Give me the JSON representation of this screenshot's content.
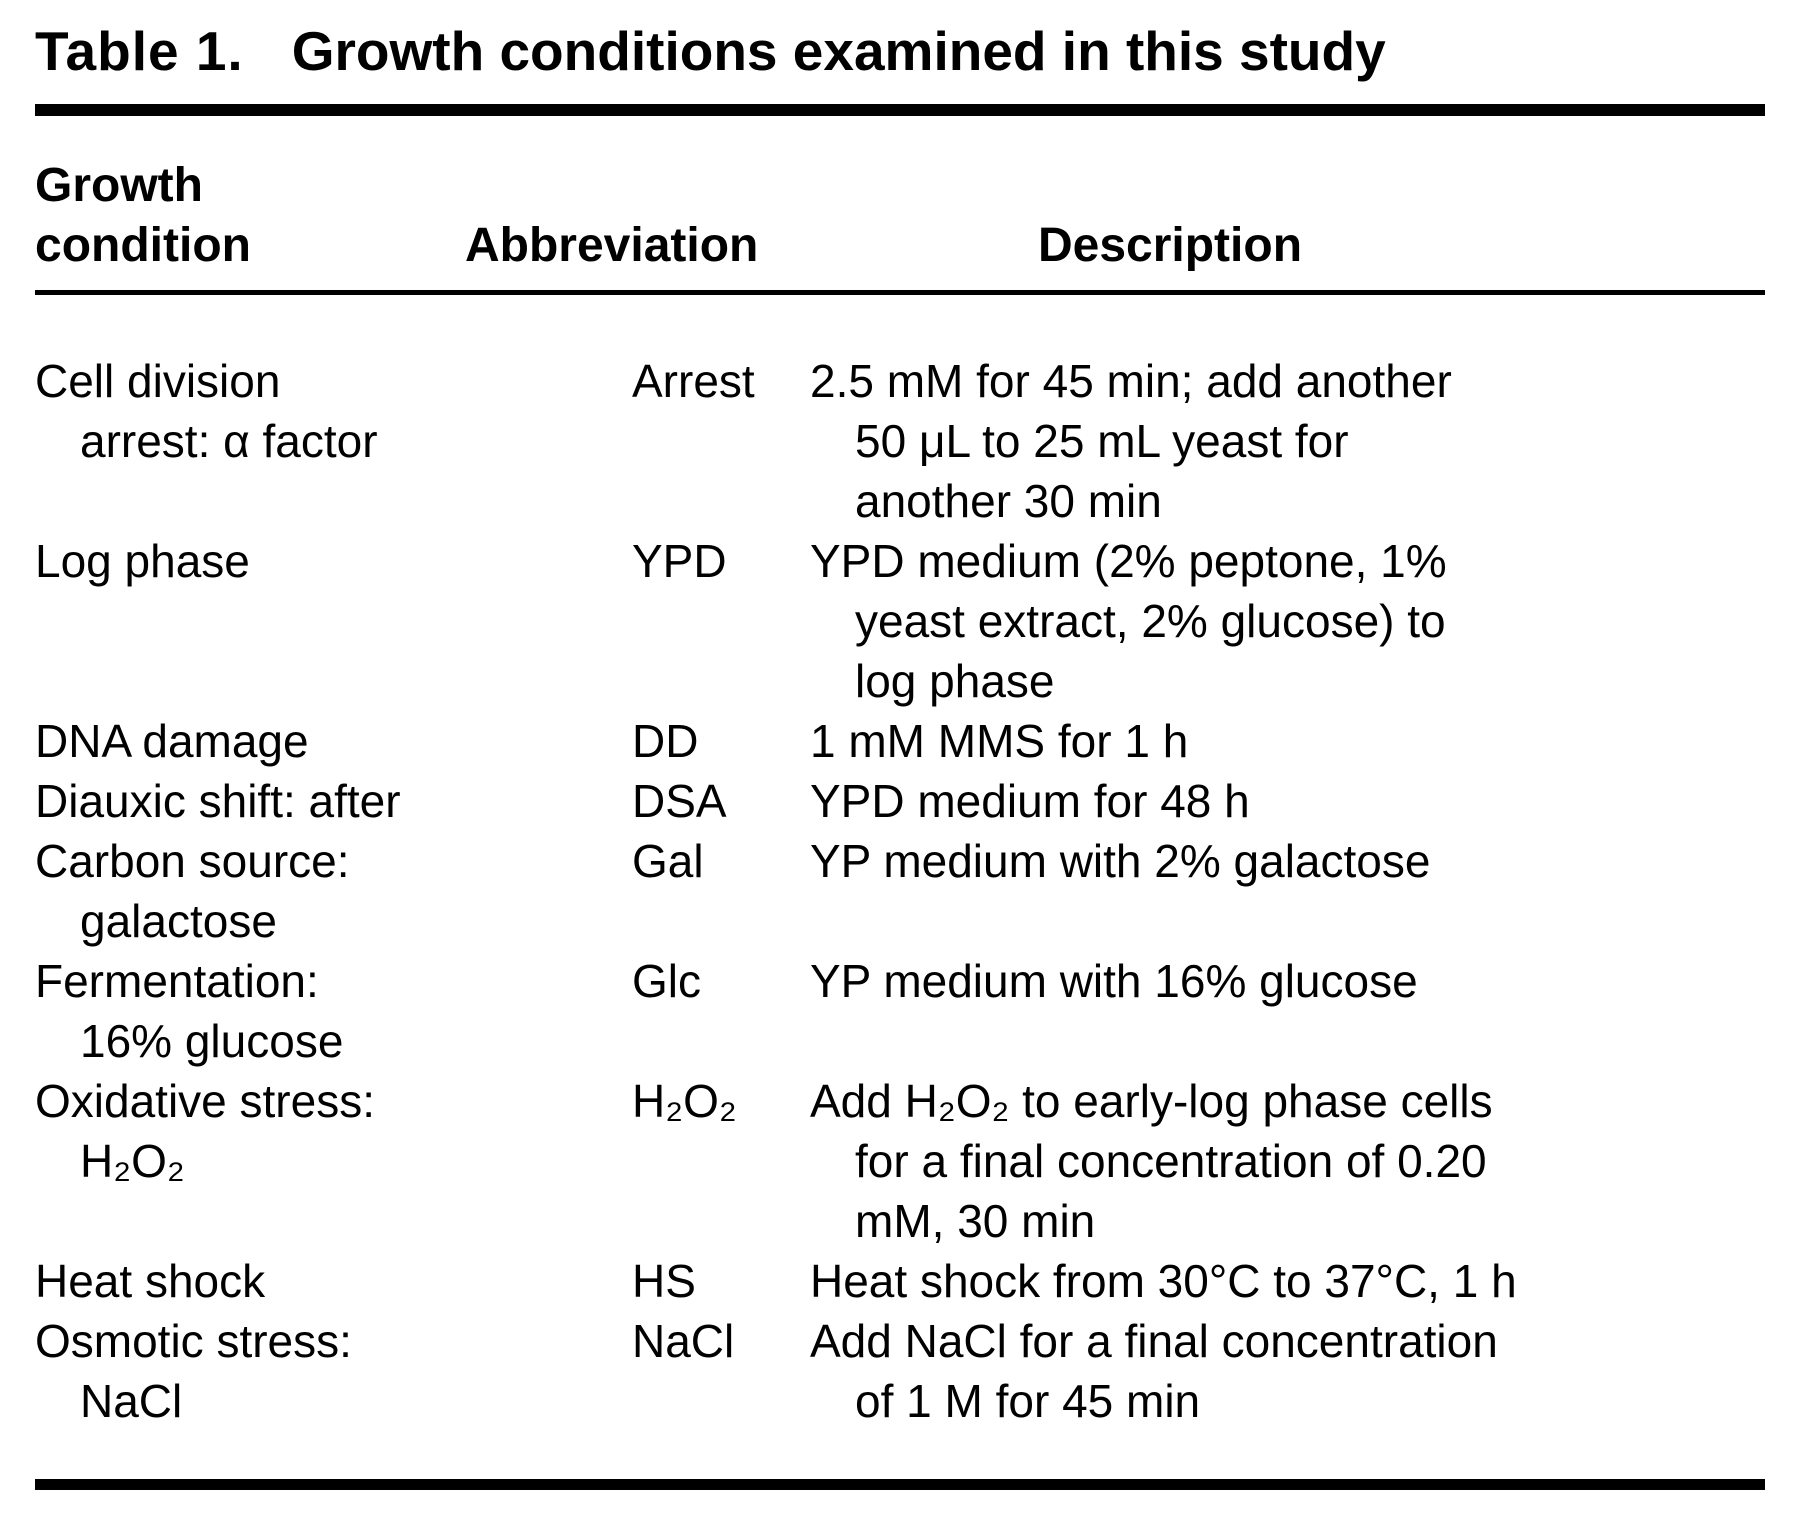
{
  "table": {
    "label": "Table 1.",
    "title": "Growth conditions examined in this study",
    "columns": {
      "condition": "Growth\ncondition",
      "abbreviation": "Abbreviation",
      "description": "Description"
    },
    "rows": [
      {
        "condition": "Cell division\narrest: α factor",
        "abbreviation": "Arrest",
        "description": "2.5 mM for 45 min; add another\n50 μL to 25 mL yeast for\nanother 30 min"
      },
      {
        "condition": "Log phase",
        "abbreviation": "YPD",
        "description": "YPD medium (2% peptone, 1%\nyeast extract, 2% glucose) to\nlog phase"
      },
      {
        "condition": "DNA damage",
        "abbreviation": "DD",
        "description": "1 mM MMS for 1 h"
      },
      {
        "condition": "Diauxic shift: after",
        "abbreviation": "DSA",
        "description": "YPD medium for 48 h"
      },
      {
        "condition": "Carbon source:\ngalactose",
        "abbreviation": "Gal",
        "description": "YP medium with 2% galactose"
      },
      {
        "condition": "Fermentation:\n16% glucose",
        "abbreviation": "Glc",
        "description": "YP medium with 16% glucose"
      },
      {
        "condition": "Oxidative stress:\nH₂O₂",
        "abbreviation": "H₂O₂",
        "description": "Add H₂O₂ to early-log phase cells\nfor a final concentration of 0.20\nmM, 30 min"
      },
      {
        "condition": "Heat shock",
        "abbreviation": "HS",
        "description": "Heat shock from 30°C to 37°C, 1 h"
      },
      {
        "condition": "Osmotic stress:\nNaCl",
        "abbreviation": "NaCl",
        "description": "Add NaCl for a final concentration\nof 1 M for 45 min"
      }
    ]
  }
}
